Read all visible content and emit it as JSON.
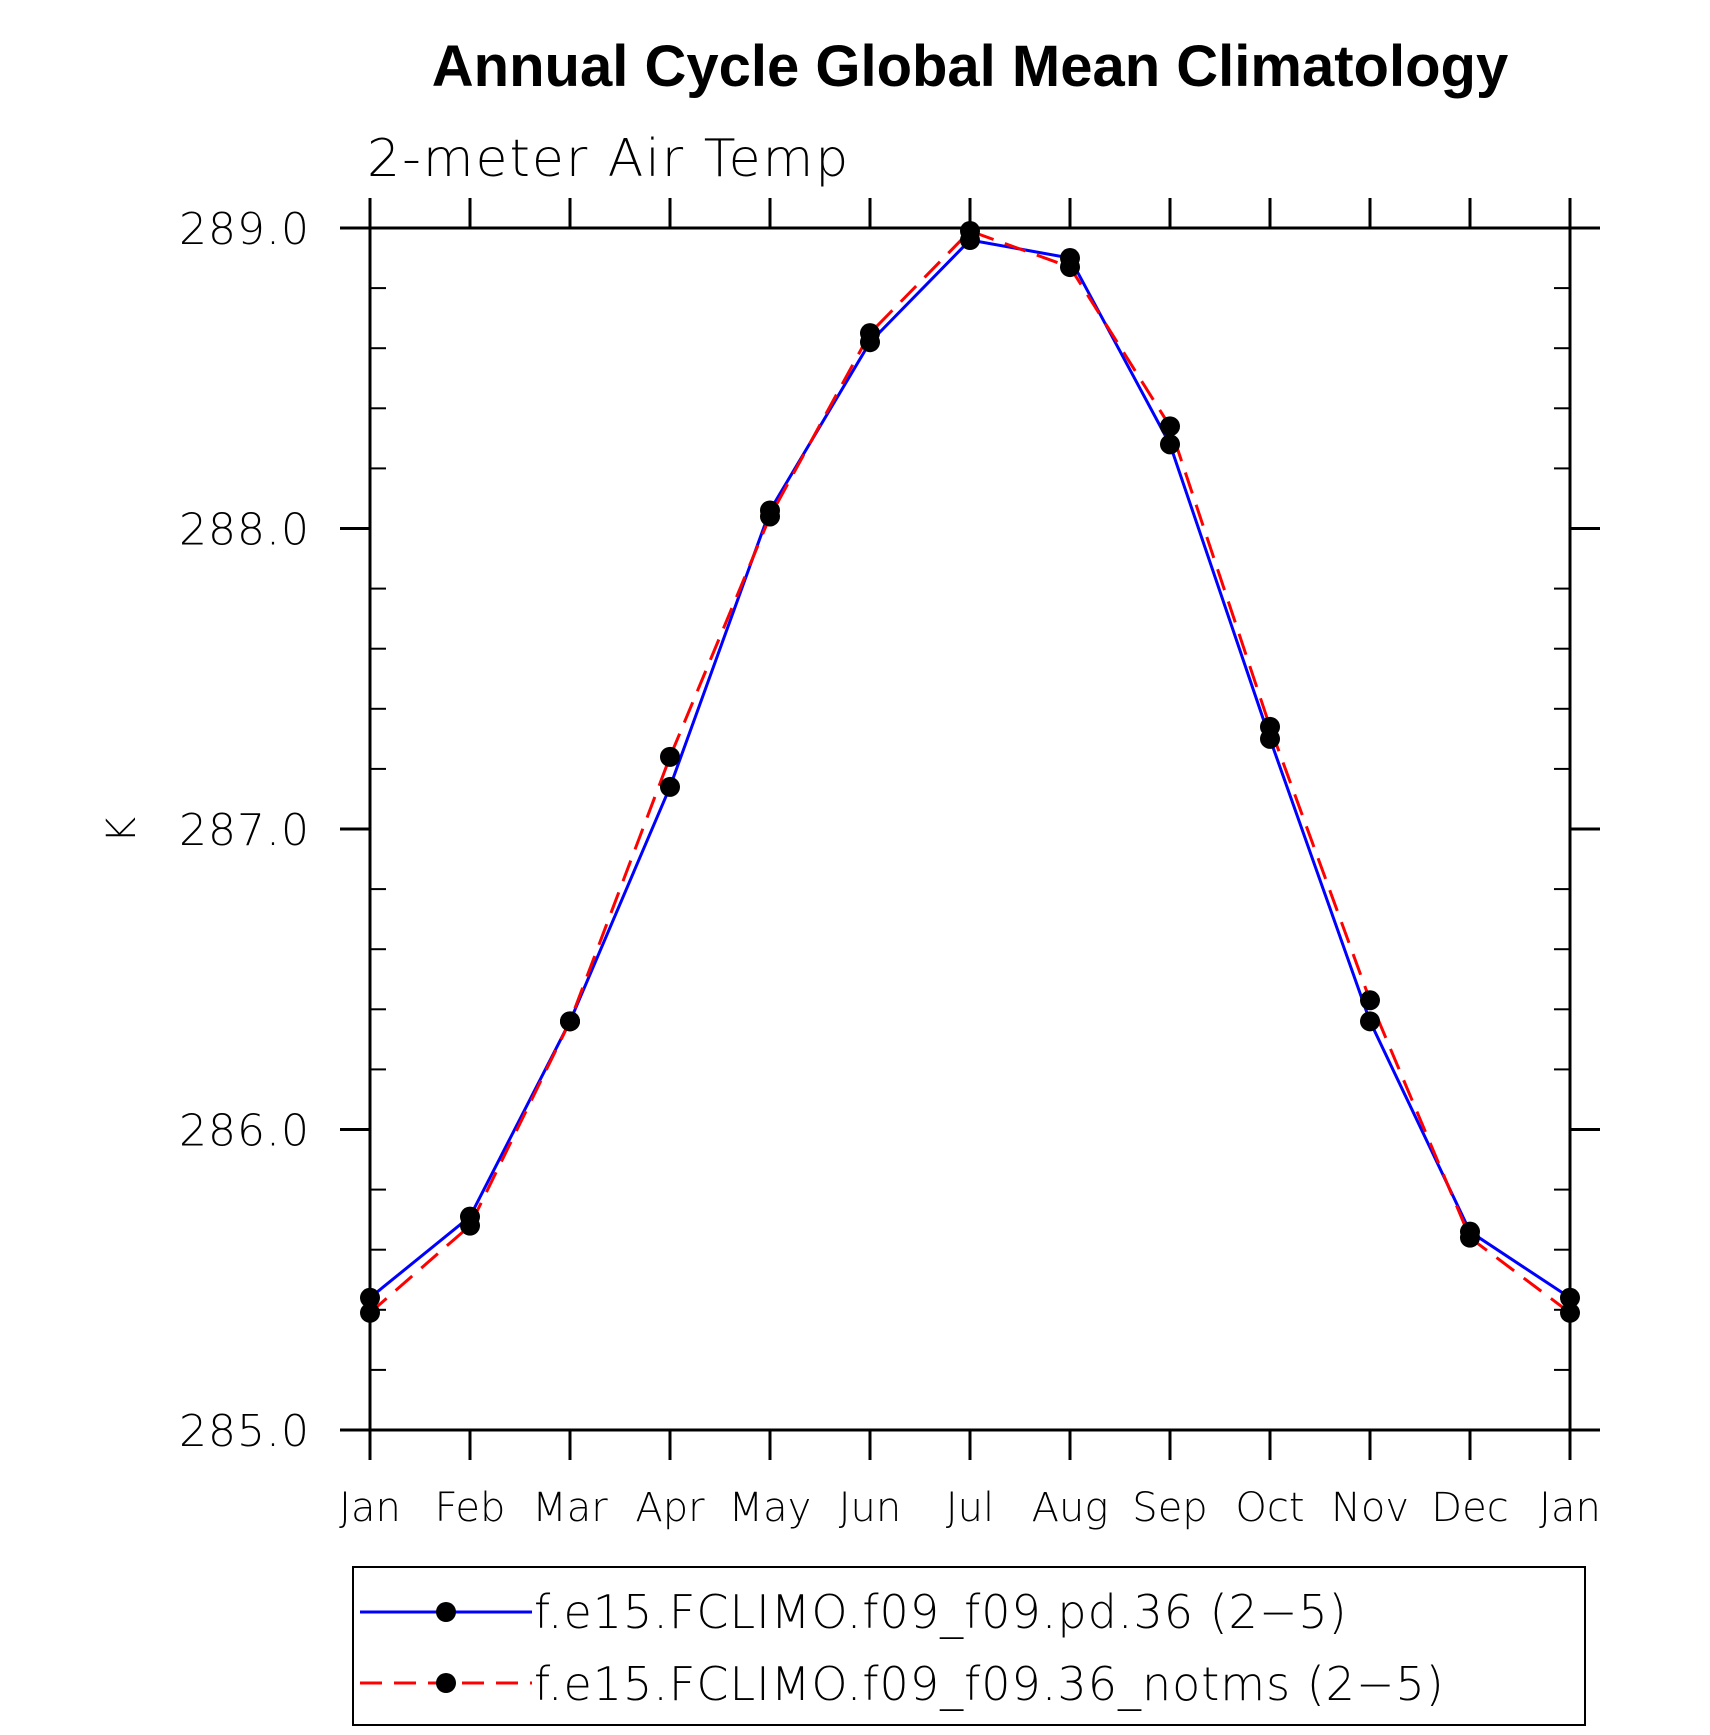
{
  "chart_data": {
    "type": "line",
    "title": "Annual Cycle Global Mean Climatology",
    "subtitle": "2-meter Air Temp",
    "xlabel": "",
    "ylabel": "K",
    "categories": [
      "Jan",
      "Feb",
      "Mar",
      "Apr",
      "May",
      "Jun",
      "Jul",
      "Aug",
      "Sep",
      "Oct",
      "Nov",
      "Dec",
      "Jan"
    ],
    "ylim": [
      285.0,
      289.0
    ],
    "yticks": [
      "285.0",
      "286.0",
      "287.0",
      "288.0",
      "289.0"
    ],
    "grid": false,
    "legend_position": "bottom",
    "series": [
      {
        "name": "f.e15.FCLIMO.f09_f09.pd.36 (2−5)",
        "color": "#0000ff",
        "line_style": "solid",
        "marker": "filled-circle",
        "values": [
          285.44,
          285.71,
          286.36,
          287.14,
          288.06,
          288.62,
          288.96,
          288.9,
          288.28,
          287.3,
          286.36,
          285.66,
          285.44
        ]
      },
      {
        "name": "f.e15.FCLIMO.f09_f09.36_notms (2−5)",
        "color": "#ff0000",
        "line_style": "dashed",
        "marker": "filled-circle",
        "values": [
          285.39,
          285.68,
          286.36,
          287.24,
          288.04,
          288.65,
          288.99,
          288.87,
          288.34,
          287.34,
          286.43,
          285.64,
          285.39
        ]
      }
    ]
  }
}
